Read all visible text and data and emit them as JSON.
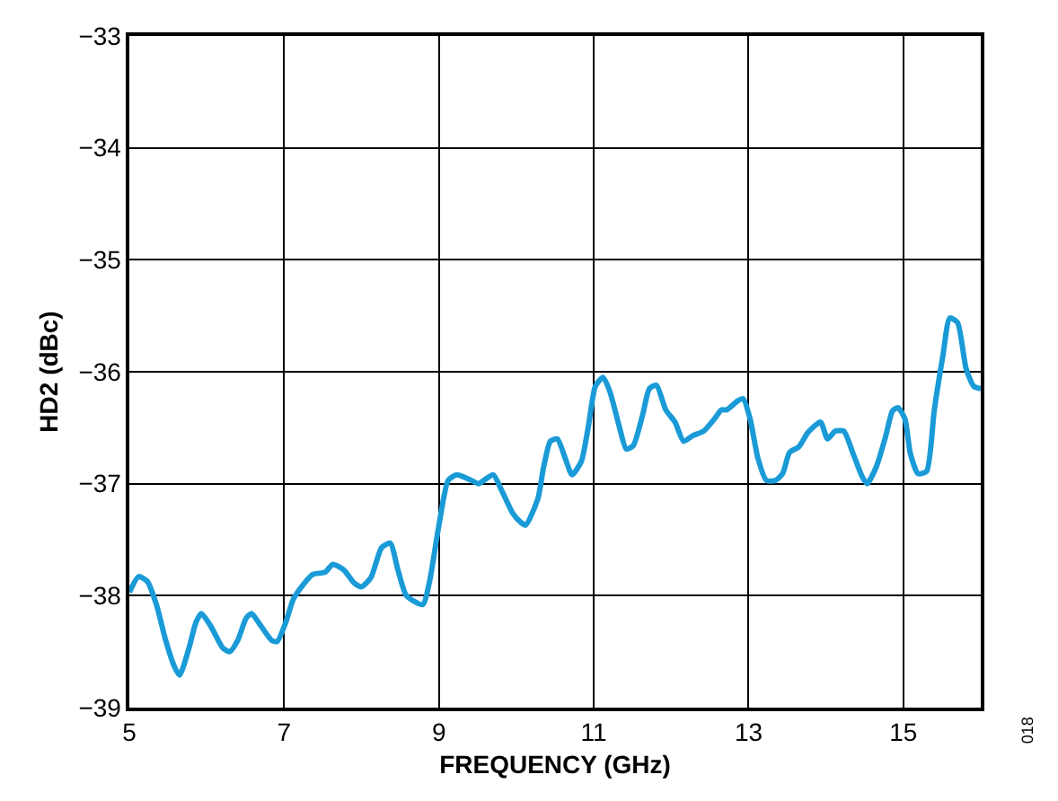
{
  "chart_data": {
    "type": "line",
    "xlabel": "FREQUENCY (GHz)",
    "ylabel": "HD2 (dBc)",
    "annotations": [
      "018"
    ],
    "x": [
      5.0,
      5.12,
      5.23,
      5.35,
      5.47,
      5.58,
      5.65,
      5.77,
      5.86,
      5.93,
      6.05,
      6.21,
      6.3,
      6.4,
      6.51,
      6.58,
      6.67,
      6.84,
      6.91,
      7.02,
      7.12,
      7.26,
      7.37,
      7.53,
      7.63,
      7.77,
      7.91,
      8.0,
      8.12,
      8.26,
      8.37,
      8.47,
      8.58,
      8.79,
      8.88,
      9.0,
      9.12,
      9.23,
      9.42,
      9.51,
      9.7,
      9.81,
      9.95,
      10.05,
      10.12,
      10.28,
      10.35,
      10.44,
      10.53,
      10.63,
      10.72,
      10.84,
      10.93,
      11.02,
      11.12,
      11.21,
      11.33,
      11.42,
      11.51,
      11.63,
      11.72,
      11.81,
      11.93,
      12.05,
      12.16,
      12.28,
      12.42,
      12.56,
      12.65,
      12.72,
      12.86,
      12.93,
      13.02,
      13.12,
      13.23,
      13.35,
      13.44,
      13.53,
      13.65,
      13.77,
      13.93,
      14.02,
      14.12,
      14.23,
      14.35,
      14.47,
      14.53,
      14.65,
      14.77,
      14.86,
      14.93,
      15.02,
      15.09,
      15.19,
      15.3,
      15.4,
      15.51,
      15.6,
      15.7,
      15.81,
      15.91,
      16.0
    ],
    "series": [
      {
        "color": "#1a9bd7",
        "values": [
          -37.97,
          -37.83,
          -37.87,
          -38.08,
          -38.4,
          -38.63,
          -38.71,
          -38.47,
          -38.24,
          -38.16,
          -38.27,
          -38.47,
          -38.5,
          -38.4,
          -38.2,
          -38.16,
          -38.24,
          -38.4,
          -38.41,
          -38.24,
          -38.03,
          -37.89,
          -37.81,
          -37.79,
          -37.72,
          -37.77,
          -37.89,
          -37.92,
          -37.84,
          -37.57,
          -37.53,
          -37.77,
          -38.0,
          -38.08,
          -37.87,
          -37.37,
          -36.97,
          -36.92,
          -36.97,
          -37.0,
          -36.92,
          -37.06,
          -37.26,
          -37.34,
          -37.37,
          -37.13,
          -36.86,
          -36.62,
          -36.6,
          -36.77,
          -36.92,
          -36.8,
          -36.49,
          -36.13,
          -36.05,
          -36.18,
          -36.49,
          -36.69,
          -36.66,
          -36.39,
          -36.15,
          -36.12,
          -36.34,
          -36.45,
          -36.62,
          -36.57,
          -36.53,
          -36.42,
          -36.34,
          -36.34,
          -36.26,
          -36.24,
          -36.42,
          -36.77,
          -36.97,
          -36.97,
          -36.91,
          -36.72,
          -36.67,
          -36.54,
          -36.45,
          -36.6,
          -36.53,
          -36.53,
          -36.73,
          -36.94,
          -37.0,
          -36.85,
          -36.58,
          -36.35,
          -36.32,
          -36.42,
          -36.73,
          -36.91,
          -36.89,
          -36.34,
          -35.86,
          -35.52,
          -35.56,
          -35.97,
          -36.13,
          -36.15
        ]
      }
    ],
    "xlim": [
      5,
      16
    ],
    "xticks": [
      5,
      7,
      9,
      11,
      13,
      15
    ],
    "ylim": [
      -39,
      -33
    ],
    "yticks": [
      {
        "value": -39,
        "label": "−39"
      },
      {
        "value": -38,
        "label": "−38"
      },
      {
        "value": -37,
        "label": "−37"
      },
      {
        "value": -36,
        "label": "−36"
      },
      {
        "value": -35,
        "label": "−35"
      },
      {
        "value": -34,
        "label": "−34"
      },
      {
        "value": -33,
        "label": "−33"
      }
    ],
    "grid": true,
    "marker": "none",
    "line_style": "solid"
  }
}
